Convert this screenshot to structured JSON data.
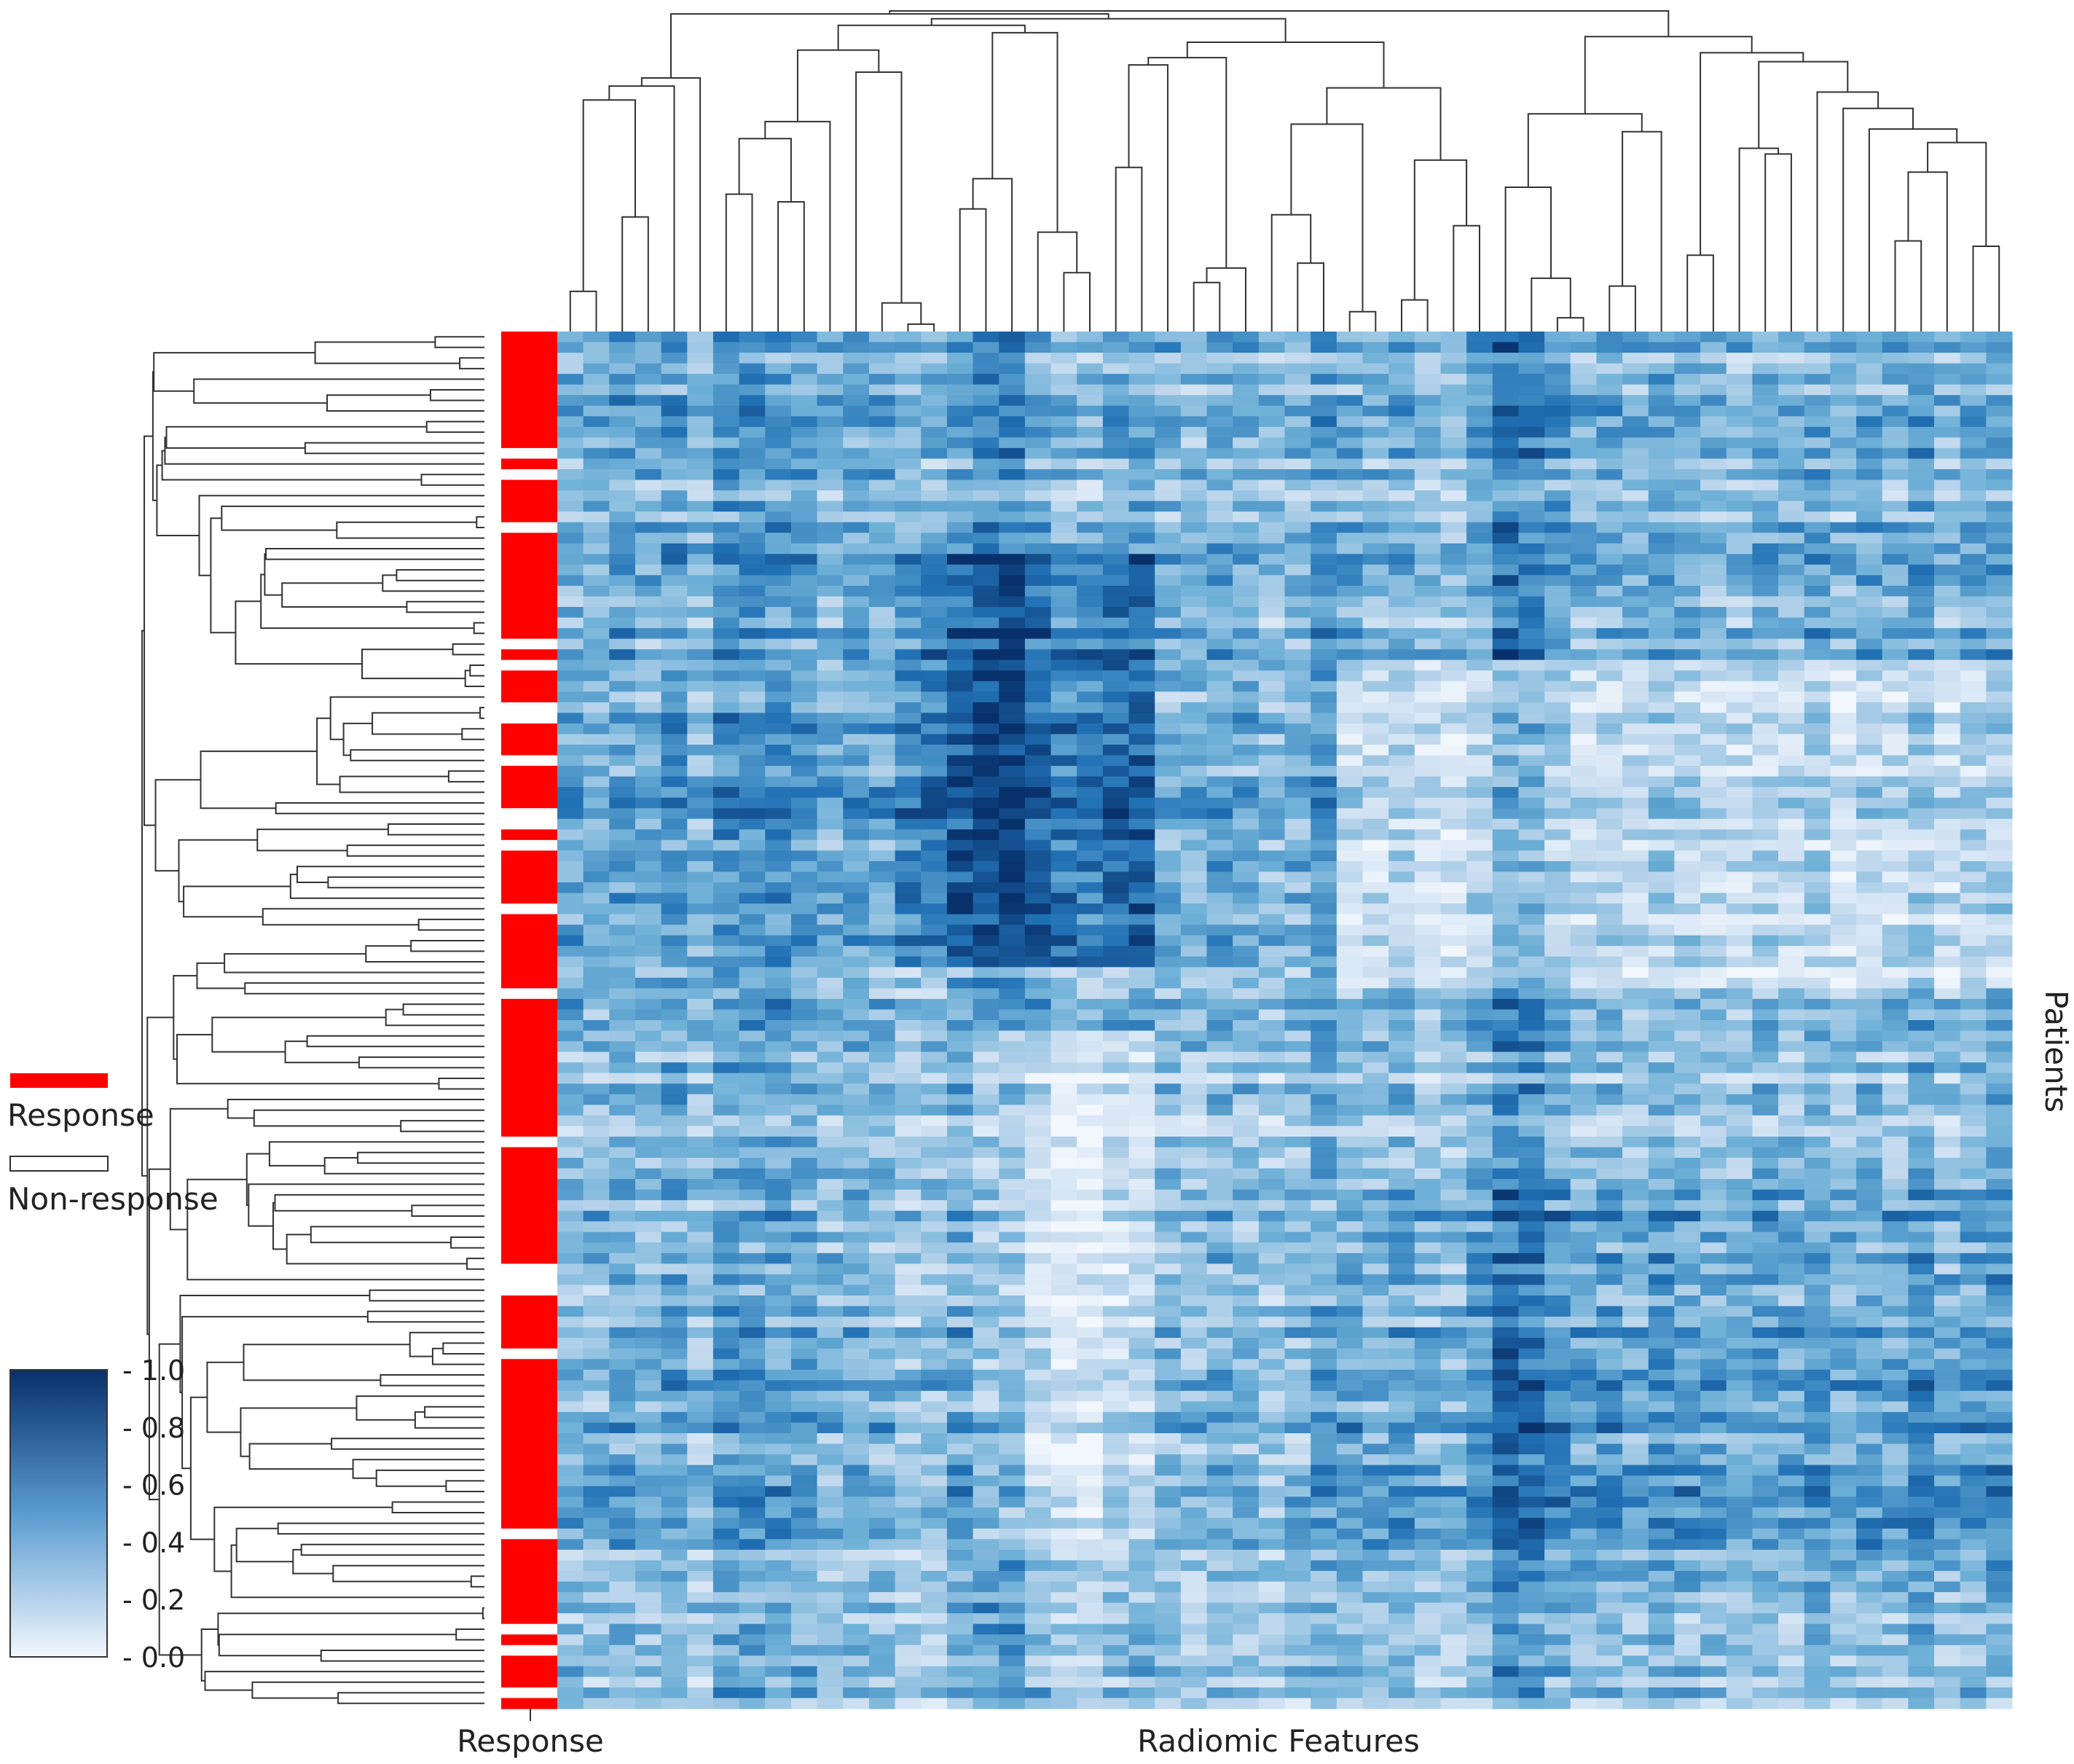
{
  "chart_data": {
    "type": "heatmap",
    "subtype": "clustermap",
    "xlabel": "Radiomic Features",
    "ylabel": "Patients",
    "annotation_column_label": "Response",
    "n_features": 56,
    "n_patients": 130,
    "colormap": {
      "name": "Blues",
      "low": "#f2f7fd",
      "high": "#08306b"
    },
    "value_range": [
      0.0,
      1.0
    ],
    "colorbar": {
      "ticks": [
        0.0,
        0.2,
        0.4,
        0.6,
        0.8,
        1.0
      ],
      "tick_labels": [
        "- 0.0",
        "- 0.2",
        "- 0.4",
        "- 0.6",
        "- 0.8",
        "- 1.0"
      ]
    },
    "legend": [
      {
        "label": "Response",
        "color": "#ff0000"
      },
      {
        "label": "Non-response",
        "color": "#ffffff"
      }
    ],
    "response_colors": {
      "response": "#ff0000",
      "non_response": "#ffffff"
    },
    "column_block_means": [
      0.45,
      0.4,
      0.5,
      0.42,
      0.55,
      0.35,
      0.62,
      0.58,
      0.6,
      0.55,
      0.4,
      0.5,
      0.45,
      0.3,
      0.35,
      0.55,
      0.68,
      0.72,
      0.5,
      0.35,
      0.3,
      0.45,
      0.5,
      0.4,
      0.35,
      0.45,
      0.4,
      0.32,
      0.38,
      0.55,
      0.4,
      0.38,
      0.45,
      0.3,
      0.28,
      0.5,
      0.78,
      0.72,
      0.55,
      0.4,
      0.45,
      0.38,
      0.5,
      0.45,
      0.4,
      0.35,
      0.45,
      0.4,
      0.5,
      0.35,
      0.45,
      0.4,
      0.55,
      0.35,
      0.45,
      0.52
    ],
    "row_block_means": [
      0.55,
      0.5,
      0.52,
      0.55,
      0.6,
      0.62,
      0.65,
      0.6,
      0.55,
      0.5,
      0.35,
      0.4,
      0.45,
      0.5,
      0.5,
      0.55,
      0.55,
      0.45,
      0.4,
      0.38
    ],
    "response_pattern": [
      1,
      1,
      1,
      1,
      1,
      1,
      1,
      1,
      1,
      1,
      1,
      0,
      1,
      0,
      1,
      1,
      1,
      1,
      0,
      1,
      1,
      1,
      1,
      1,
      1,
      1,
      1,
      1,
      1,
      0,
      1,
      0,
      1,
      1,
      1,
      0,
      0,
      1,
      1,
      1,
      0,
      1,
      1,
      1,
      1,
      0,
      0,
      1,
      0,
      1,
      1,
      1,
      1,
      1,
      0,
      1,
      1,
      1,
      1,
      1,
      1,
      1,
      0,
      1,
      1,
      1,
      1,
      1,
      1,
      1,
      1,
      1,
      1,
      1,
      1,
      1,
      0,
      1,
      1,
      1,
      1,
      1,
      1,
      1,
      1,
      1,
      1,
      1,
      0,
      0,
      0,
      1,
      1,
      1,
      1,
      1,
      0,
      1,
      1,
      1,
      1,
      1,
      1,
      1,
      1,
      1,
      1,
      1,
      1,
      1,
      1,
      1,
      1,
      0,
      1,
      1,
      1,
      1,
      1,
      1,
      1,
      1,
      0,
      1,
      0,
      1,
      1,
      1,
      0,
      1
    ]
  }
}
